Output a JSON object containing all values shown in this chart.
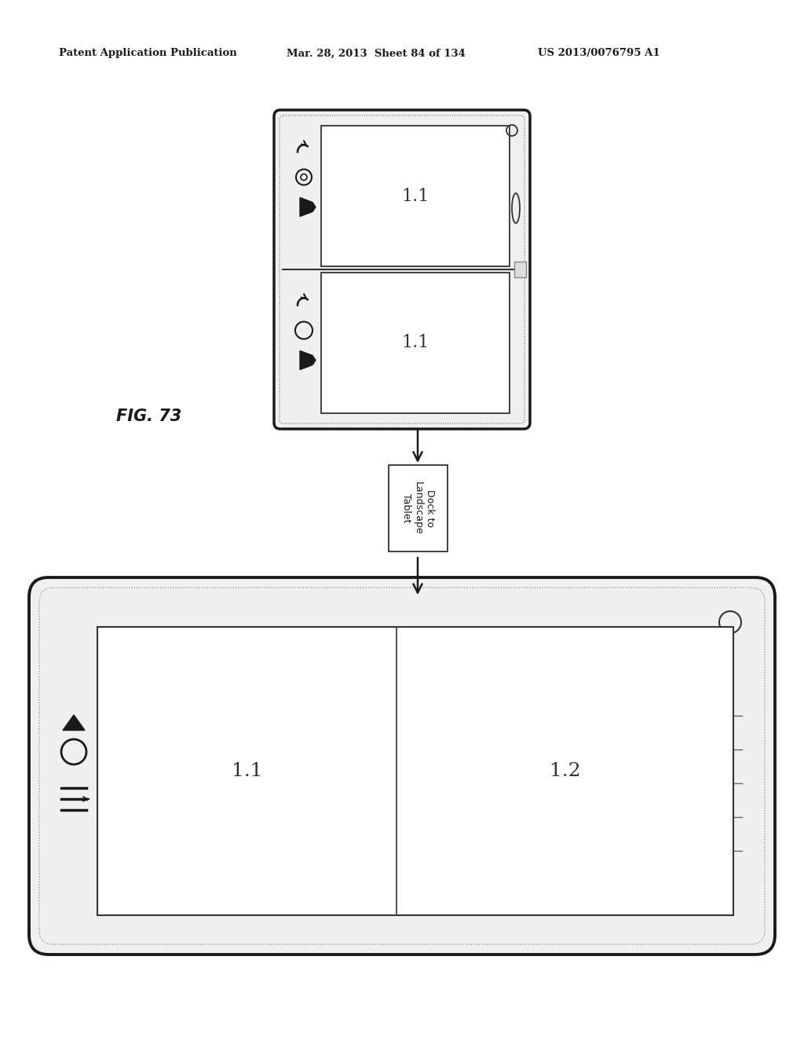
{
  "bg_color": "#ffffff",
  "header_left": "Patent Application Publication",
  "header_mid": "Mar. 28, 2013  Sheet 84 of 134",
  "header_right": "US 2013/0076795 A1",
  "fig_label": "FIG. 73",
  "label_11": "1.1",
  "label_12": "1.2",
  "arrow_label": "Dock to\nLandscape\nTablet"
}
